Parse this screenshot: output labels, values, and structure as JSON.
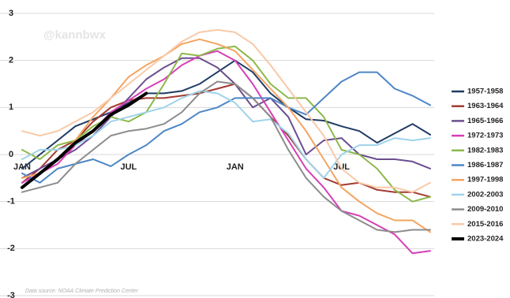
{
  "chart_data": {
    "type": "line",
    "watermark": "@kannbwx",
    "source": "Data source: NOAA Climate Prediction Center",
    "categories": [
      "JAN",
      null,
      null,
      null,
      null,
      null,
      "JUL",
      null,
      null,
      null,
      null,
      null,
      "JAN",
      null,
      null,
      null,
      null,
      null,
      "JUL",
      null,
      null,
      null,
      null,
      null
    ],
    "ylim": [
      -3,
      3
    ],
    "yticks": [
      -3,
      -2,
      -1,
      0,
      1,
      2,
      3
    ],
    "grid": true,
    "legend": "right",
    "series": [
      {
        "name": "1957-1958",
        "color": "#1f3b63",
        "values": [
          -0.3,
          0.0,
          0.3,
          0.6,
          0.75,
          0.9,
          1.1,
          1.3,
          1.3,
          1.35,
          1.5,
          1.75,
          2.0,
          1.75,
          1.3,
          1.0,
          0.75,
          0.72,
          0.6,
          0.5,
          0.25,
          0.45,
          0.65,
          0.42
        ]
      },
      {
        "name": "1963-1964",
        "color": "#a33a32",
        "values": [
          -0.6,
          -0.3,
          0.1,
          0.3,
          0.7,
          1.0,
          1.15,
          1.2,
          1.2,
          1.25,
          1.3,
          1.4,
          1.5,
          1.2,
          0.8,
          0.4,
          -0.1,
          -0.5,
          -0.65,
          -0.6,
          -0.75,
          -0.8,
          -0.8,
          -0.9
        ]
      },
      {
        "name": "1965-1966",
        "color": "#6b4d8f",
        "values": [
          -0.5,
          -0.3,
          -0.1,
          0.1,
          0.4,
          0.8,
          1.2,
          1.6,
          1.85,
          2.05,
          2.05,
          1.85,
          1.5,
          1.0,
          1.2,
          0.8,
          0.0,
          0.3,
          0.35,
          0.0,
          -0.1,
          -0.1,
          -0.15,
          -0.3
        ]
      },
      {
        "name": "1972-1973",
        "color": "#d63fb6",
        "values": [
          -0.6,
          -0.4,
          -0.2,
          0.2,
          0.5,
          0.9,
          1.15,
          1.4,
          1.6,
          1.9,
          2.1,
          2.2,
          2.0,
          1.5,
          0.9,
          0.3,
          -0.3,
          -0.7,
          -1.2,
          -1.3,
          -1.5,
          -1.7,
          -2.1,
          -2.05
        ]
      },
      {
        "name": "1982-1983",
        "color": "#8db84a",
        "values": [
          0.1,
          -0.1,
          0.2,
          0.3,
          0.6,
          0.8,
          0.7,
          0.9,
          1.5,
          2.15,
          2.1,
          2.25,
          2.3,
          2.0,
          1.5,
          1.2,
          1.2,
          0.8,
          0.1,
          0.0,
          -0.3,
          -0.75,
          -1.0,
          -0.9
        ]
      },
      {
        "name": "1986-1987",
        "color": "#4d86c6",
        "values": [
          -0.4,
          -0.6,
          -0.3,
          -0.2,
          -0.1,
          -0.25,
          0.0,
          0.2,
          0.5,
          0.65,
          0.9,
          1.0,
          1.2,
          1.2,
          1.2,
          1.0,
          0.85,
          1.2,
          1.55,
          1.75,
          1.75,
          1.4,
          1.25,
          1.05
        ]
      },
      {
        "name": "1997-1998",
        "color": "#f4a460",
        "values": [
          -0.5,
          -0.4,
          -0.1,
          0.3,
          0.8,
          1.2,
          1.65,
          1.9,
          2.1,
          2.35,
          2.45,
          2.35,
          2.2,
          1.8,
          1.4,
          1.0,
          0.5,
          -0.1,
          -0.7,
          -1.0,
          -1.25,
          -1.4,
          -1.4,
          -1.65
        ]
      },
      {
        "name": "2002-2003",
        "color": "#9fd3ea",
        "values": [
          -0.1,
          0.1,
          0.1,
          0.2,
          0.4,
          0.7,
          0.8,
          0.9,
          1.0,
          1.2,
          1.35,
          1.3,
          1.1,
          0.7,
          0.75,
          0.45,
          -0.1,
          -0.5,
          0.0,
          0.2,
          0.2,
          0.35,
          0.3,
          0.35
        ]
      },
      {
        "name": "2009-2010",
        "color": "#8c8c8c",
        "values": [
          -0.8,
          -0.7,
          -0.6,
          -0.2,
          0.1,
          0.4,
          0.5,
          0.55,
          0.65,
          0.9,
          1.3,
          1.55,
          1.5,
          1.2,
          0.8,
          0.1,
          -0.5,
          -0.9,
          -1.2,
          -1.4,
          -1.6,
          -1.65,
          -1.6,
          -1.6
        ]
      },
      {
        "name": "2015-2016",
        "color": "#f8c9a8",
        "values": [
          0.5,
          0.4,
          0.5,
          0.7,
          0.9,
          1.2,
          1.5,
          1.8,
          2.1,
          2.4,
          2.6,
          2.65,
          2.6,
          2.35,
          1.9,
          1.4,
          0.9,
          0.4,
          -0.3,
          -0.6,
          -0.7,
          -0.7,
          -0.8,
          -0.6
        ]
      },
      {
        "name": "2023-2024",
        "color": "#000000",
        "values": [
          -0.7,
          -0.4,
          -0.1,
          0.25,
          0.5,
          0.85,
          1.05,
          1.3,
          null,
          null,
          null,
          null,
          null,
          null,
          null,
          null,
          null,
          null,
          null,
          null,
          null,
          null,
          null,
          null
        ]
      }
    ]
  }
}
